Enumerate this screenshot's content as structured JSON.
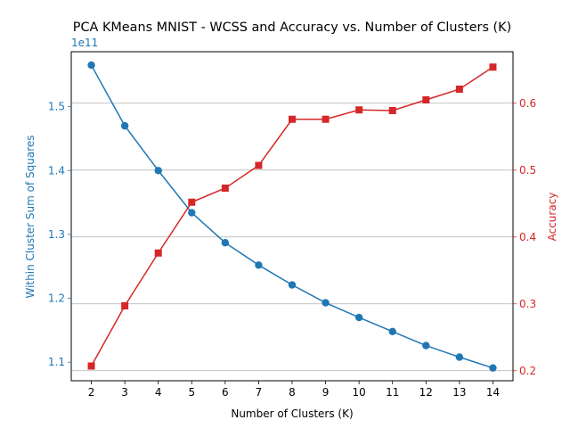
{
  "chart_data": {
    "type": "line",
    "title": "PCA KMeans MNIST - WCSS and Accuracy vs. Number of Clusters (K)",
    "xlabel": "Number of Clusters (K)",
    "ylabel_left": "Within Cluster Sum of Squares",
    "ylabel_right": "Accuracy",
    "left_offset_text": "1e11",
    "x": [
      2,
      3,
      4,
      5,
      6,
      7,
      8,
      9,
      10,
      11,
      12,
      13,
      14
    ],
    "x_ticks": [
      2,
      3,
      4,
      5,
      6,
      7,
      8,
      9,
      10,
      11,
      12,
      13,
      14
    ],
    "xlim": [
      1.4,
      14.6
    ],
    "left_axis": {
      "ylim": [
        1.071,
        1.586
      ],
      "ticks": [
        1.1,
        1.2,
        1.3,
        1.4,
        1.5
      ],
      "tick_labels": [
        "1.1",
        "1.2",
        "1.3",
        "1.4",
        "1.5"
      ],
      "color": "#1f77b4"
    },
    "right_axis": {
      "ylim": [
        0.185,
        0.677
      ],
      "ticks": [
        0.2,
        0.3,
        0.4,
        0.5,
        0.6
      ],
      "tick_labels": [
        "0.2",
        "0.3",
        "0.4",
        "0.5",
        "0.6"
      ],
      "color": "#d62728"
    },
    "series": [
      {
        "axis": "left",
        "marker": "circle",
        "color": "#1f77b4",
        "values": [
          1.565,
          1.47,
          1.4,
          1.334,
          1.287,
          1.252,
          1.221,
          1.193,
          1.17,
          1.148,
          1.126,
          1.108,
          1.091
        ]
      },
      {
        "axis": "right",
        "marker": "square",
        "color": "#d62728",
        "values": [
          0.207,
          0.297,
          0.376,
          0.452,
          0.473,
          0.507,
          0.576,
          0.576,
          0.59,
          0.589,
          0.605,
          0.621,
          0.654
        ]
      }
    ],
    "grid": "horizontal lines at right-axis ticks",
    "grid_color": "#b0b0b0"
  }
}
